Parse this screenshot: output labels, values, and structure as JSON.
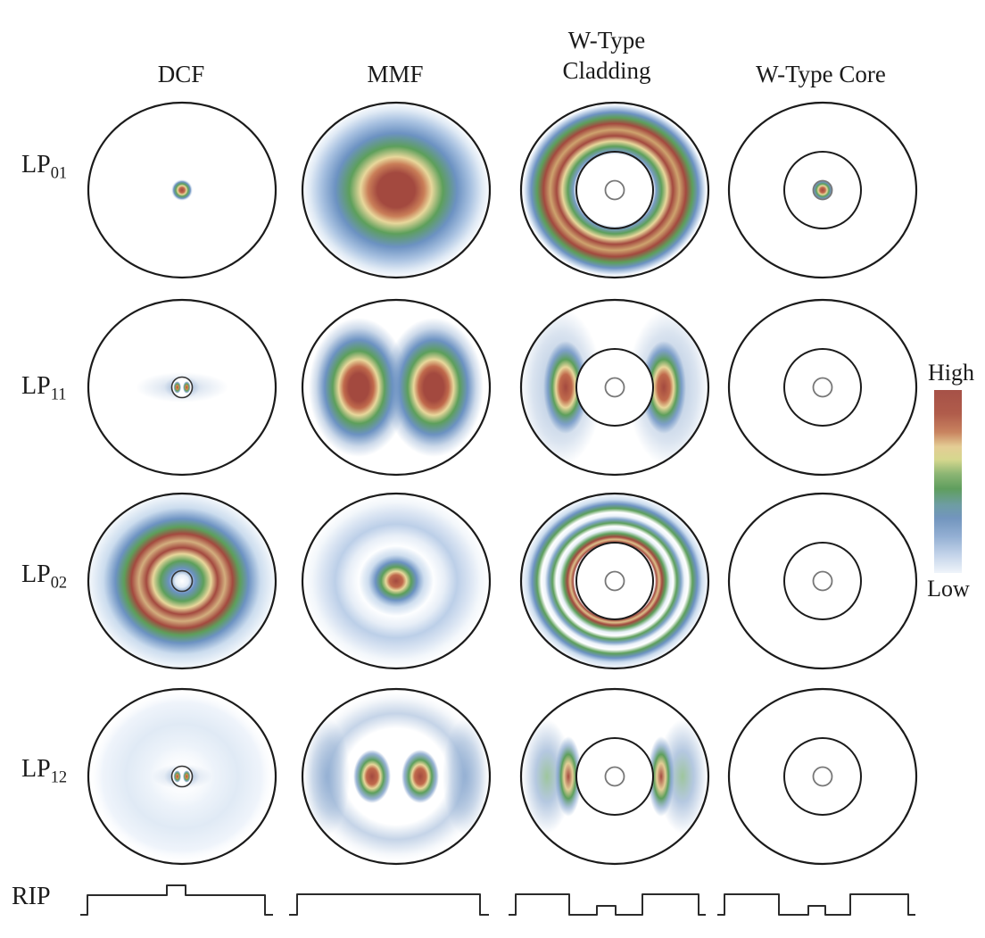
{
  "figure": {
    "column_headers": [
      "DCF",
      "MMF",
      "W-Type\nCladding",
      "W-Type Core"
    ],
    "row_labels": [
      {
        "main": "LP",
        "sub": "01"
      },
      {
        "main": "LP",
        "sub": "11"
      },
      {
        "main": "LP",
        "sub": "02"
      },
      {
        "main": "LP",
        "sub": "12"
      }
    ],
    "rip_label": "RIP",
    "colorbar": {
      "high": "High",
      "low": "Low",
      "stops": [
        [
          0.0,
          "#A65147"
        ],
        [
          0.13,
          "#B05C4B"
        ],
        [
          0.23,
          "#C8835F"
        ],
        [
          0.31,
          "#E4CD95"
        ],
        [
          0.38,
          "#D6D78E"
        ],
        [
          0.46,
          "#8BB573"
        ],
        [
          0.54,
          "#5F9E5E"
        ],
        [
          0.63,
          "#6E9DA4"
        ],
        [
          0.7,
          "#7295BE"
        ],
        [
          0.8,
          "#93AFD3"
        ],
        [
          0.9,
          "#C3D3E9"
        ],
        [
          1.0,
          "#EFF4FA"
        ]
      ]
    }
  },
  "chart_data": {
    "type": "heatmap",
    "title": "LP mode intensity distributions for four fiber designs",
    "columns": [
      "DCF",
      "MMF",
      "W-Type Cladding",
      "W-Type Core"
    ],
    "rows": [
      "LP01",
      "LP11",
      "LP02",
      "LP12"
    ],
    "legend": {
      "high": "High",
      "low": "Low",
      "position": "right"
    },
    "palette_high_to_low": [
      "#A3493F",
      "#C06A4C",
      "#E8D79B",
      "#5D9F5B",
      "#6C92C2",
      "#D6E3F3",
      "#FFFFFF"
    ],
    "cells": [
      [
        {
          "pattern": "small-central-spot",
          "circles": [
            "outer"
          ],
          "intensity": "tiny core spot"
        },
        {
          "pattern": "broad-gaussian",
          "circles": [
            "outer"
          ],
          "intensity": "broad gaussian filling core"
        },
        {
          "pattern": "double-red-annulus",
          "circles": [
            "outer",
            "inner",
            "center-dot"
          ],
          "intensity": "strong ring in outer cladding"
        },
        {
          "pattern": "small-central-spot",
          "circles": [
            "outer",
            "inner",
            "center-dot"
          ],
          "intensity": "tiny core spot"
        }
      ],
      [
        {
          "pattern": "micro-two-lobes",
          "circles": [
            "outer",
            "core-ring"
          ],
          "intensity": "two tiny lobes in core"
        },
        {
          "pattern": "two-lobes",
          "circles": [
            "outer"
          ],
          "intensity": "two large horizontal lobes"
        },
        {
          "pattern": "inner-crescent-pair",
          "circles": [
            "outer",
            "inner",
            "center-dot"
          ],
          "intensity": "two crescents hugging inner cladding"
        },
        {
          "pattern": "none",
          "circles": [
            "outer",
            "inner",
            "center-dot"
          ],
          "intensity": "none"
        }
      ],
      [
        {
          "pattern": "concentric-double-ring",
          "circles": [
            "outer",
            "core-ring"
          ],
          "intensity": "full-disc concentric double ring"
        },
        {
          "pattern": "central-spot-faint-outer-ring",
          "circles": [
            "outer"
          ],
          "intensity": "central spot plus faint outer blue ring"
        },
        {
          "pattern": "thin-multi-rings",
          "circles": [
            "outer",
            "inner",
            "center-dot"
          ],
          "intensity": "thin red/green/blue rings outside inner cladding"
        },
        {
          "pattern": "none",
          "circles": [
            "outer",
            "inner",
            "center-dot"
          ],
          "intensity": "none"
        }
      ],
      [
        {
          "pattern": "micro-two-lobes-faint-halo",
          "circles": [
            "outer",
            "core-ring"
          ],
          "intensity": "two tiny lobes with faint blue halo"
        },
        {
          "pattern": "two-lobes-outer-arcs",
          "circles": [
            "outer"
          ],
          "intensity": "two lobes with outer blue arcs"
        },
        {
          "pattern": "thin-crescents-outer-arcs",
          "circles": [
            "outer",
            "inner",
            "center-dot"
          ],
          "intensity": "thin crescents plus outer green/blue arcs"
        },
        {
          "pattern": "none",
          "circles": [
            "outer",
            "inner",
            "center-dot"
          ],
          "intensity": "none"
        }
      ]
    ],
    "rip_profiles": {
      "DCF": [
        [
          90,
          1025
        ],
        [
          98,
          1025
        ],
        [
          98,
          1003
        ],
        [
          187,
          1003
        ],
        [
          187,
          992
        ],
        [
          208,
          992
        ],
        [
          208,
          1003
        ],
        [
          297,
          1003
        ],
        [
          297,
          1025
        ],
        [
          306,
          1025
        ]
      ],
      "MMF": [
        [
          324,
          1025
        ],
        [
          333,
          1025
        ],
        [
          333,
          1002
        ],
        [
          538,
          1002
        ],
        [
          538,
          1025
        ],
        [
          548,
          1025
        ]
      ],
      "W-Type Cladding": [
        [
          570,
          1025
        ],
        [
          578,
          1025
        ],
        [
          578,
          1002
        ],
        [
          638,
          1002
        ],
        [
          638,
          1025
        ],
        [
          669,
          1025
        ],
        [
          669,
          1015
        ],
        [
          690,
          1015
        ],
        [
          690,
          1025
        ],
        [
          720,
          1025
        ],
        [
          720,
          1002
        ],
        [
          783,
          1002
        ],
        [
          783,
          1025
        ],
        [
          791,
          1025
        ]
      ],
      "W-Type Core": [
        [
          804,
          1025
        ],
        [
          812,
          1025
        ],
        [
          812,
          1002
        ],
        [
          873,
          1002
        ],
        [
          873,
          1025
        ],
        [
          906,
          1025
        ],
        [
          906,
          1015
        ],
        [
          925,
          1015
        ],
        [
          925,
          1025
        ],
        [
          953,
          1025
        ],
        [
          953,
          1002
        ],
        [
          1018,
          1002
        ],
        [
          1018,
          1025
        ],
        [
          1026,
          1025
        ]
      ]
    }
  }
}
